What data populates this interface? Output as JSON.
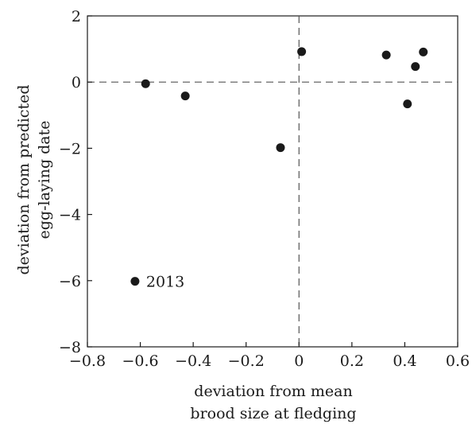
{
  "chart_data": {
    "type": "scatter",
    "title": "",
    "xlabel_lines": [
      "deviation from mean",
      "brood size at fledging"
    ],
    "ylabel_lines": [
      "deviation from predicted",
      "egg-laying date"
    ],
    "xlim": [
      -0.8,
      0.6
    ],
    "ylim": [
      -8,
      2
    ],
    "xticks": [
      -0.8,
      -0.6,
      -0.4,
      -0.2,
      0,
      0.2,
      0.4,
      0.6
    ],
    "xtick_labels": [
      "−0.8",
      "−0.6",
      "−0.4",
      "−0.2",
      "0",
      "0.2",
      "0.4",
      "0.6"
    ],
    "yticks": [
      -8,
      -6,
      -4,
      -2,
      0,
      2
    ],
    "ytick_labels": [
      "−8",
      "−6",
      "−4",
      "−2",
      "0",
      "2"
    ],
    "grid": false,
    "reference_lines": {
      "x": 0,
      "y": 0,
      "style": "dashed"
    },
    "points": [
      {
        "x": -0.58,
        "y": -0.05
      },
      {
        "x": -0.43,
        "y": -0.42
      },
      {
        "x": -0.07,
        "y": -1.98
      },
      {
        "x": 0.01,
        "y": 0.92
      },
      {
        "x": 0.33,
        "y": 0.82
      },
      {
        "x": 0.41,
        "y": -0.66
      },
      {
        "x": 0.44,
        "y": 0.47
      },
      {
        "x": 0.47,
        "y": 0.91
      },
      {
        "x": -0.62,
        "y": -6.02,
        "label": "2013"
      }
    ],
    "marker_color": "#1a1a1a"
  }
}
